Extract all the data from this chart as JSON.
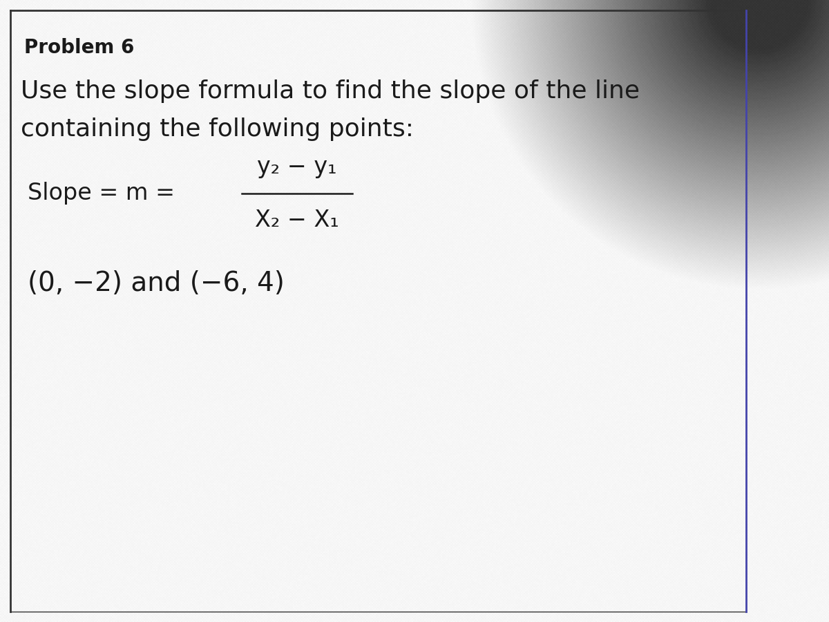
{
  "background_color": "#b8b8b8",
  "card_color": "#cccccc",
  "border_color": "#1a1a1a",
  "text_color": "#1a1a1a",
  "problem_title": "Problem 6",
  "instruction_line1": "Use the slope formula to find the slope of the line",
  "instruction_line2": "containing the following points:",
  "slope_label": "Slope = m = ",
  "numerator": "y₂ − y₁",
  "denominator": "X₂ − X₁",
  "points": "(0, −2) and (−6, 4)",
  "title_fontsize": 20,
  "instruction_fontsize": 26,
  "formula_fontsize": 24,
  "points_fontsize": 28,
  "figwidth": 12.0,
  "figheight": 9.0
}
